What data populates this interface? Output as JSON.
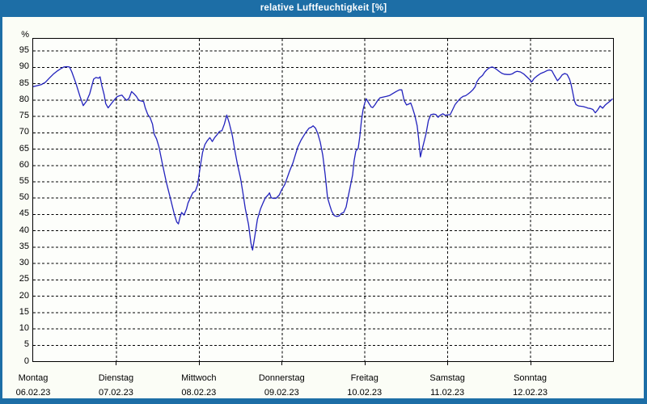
{
  "window": {
    "title": "relative Luftfeuchtigkeit [%]"
  },
  "colors": {
    "chrome": "#1d6ea6",
    "content_bg": "#fbfdf6",
    "plot_bg": "#fdfefb",
    "grid": "#000000",
    "line": "#2222bd",
    "title_text": "#ffffff",
    "label_text": "#000000"
  },
  "chart_data": {
    "type": "line",
    "title": "relative Luftfeuchtigkeit [%]",
    "ylabel": "%",
    "ylim": [
      0,
      100
    ],
    "y_ticks": [
      0,
      5,
      10,
      15,
      20,
      25,
      30,
      35,
      40,
      45,
      50,
      55,
      60,
      65,
      70,
      75,
      80,
      85,
      90,
      95
    ],
    "grid": "dashed",
    "legend": "none",
    "xlim_days": [
      0,
      7
    ],
    "x_categories": [
      {
        "day": "Montag",
        "date": "06.02.23"
      },
      {
        "day": "Dienstag",
        "date": "07.02.23"
      },
      {
        "day": "Mittwoch",
        "date": "08.02.23"
      },
      {
        "day": "Donnerstag",
        "date": "09.02.23"
      },
      {
        "day": "Freitag",
        "date": "10.02.23"
      },
      {
        "day": "Samstag",
        "date": "11.02.23"
      },
      {
        "day": "Sonntag",
        "date": "12.02.23"
      }
    ],
    "series": [
      {
        "name": "relative Luftfeuchtigkeit",
        "unit": "%",
        "color": "#2222bd",
        "points": [
          [
            0,
            84
          ],
          [
            0.049,
            84.3
          ],
          [
            0.097,
            84.6
          ],
          [
            0.146,
            85.3
          ],
          [
            0.195,
            86.6
          ],
          [
            0.243,
            87.8
          ],
          [
            0.292,
            88.8
          ],
          [
            0.341,
            89.6
          ],
          [
            0.37,
            90
          ],
          [
            0.409,
            90.1
          ],
          [
            0.438,
            90
          ],
          [
            0.467,
            88.5
          ],
          [
            0.516,
            85
          ],
          [
            0.565,
            81
          ],
          [
            0.604,
            78.2
          ],
          [
            0.643,
            79.5
          ],
          [
            0.682,
            81.8
          ],
          [
            0.73,
            86.3
          ],
          [
            0.759,
            86.8
          ],
          [
            0.789,
            86.6
          ],
          [
            0.808,
            87
          ],
          [
            0.828,
            84.4
          ],
          [
            0.857,
            81.5
          ],
          [
            0.876,
            78.8
          ],
          [
            0.905,
            77.5
          ],
          [
            0.935,
            78.5
          ],
          [
            0.974,
            79.8
          ],
          [
            1.013,
            80.9
          ],
          [
            1.042,
            81.2
          ],
          [
            1.071,
            81.4
          ],
          [
            1.1,
            80.5
          ],
          [
            1.13,
            79.8
          ],
          [
            1.159,
            80.5
          ],
          [
            1.188,
            82.5
          ],
          [
            1.217,
            81.8
          ],
          [
            1.246,
            81
          ],
          [
            1.276,
            79.8
          ],
          [
            1.305,
            79.6
          ],
          [
            1.334,
            79.4
          ],
          [
            1.353,
            77.5
          ],
          [
            1.383,
            75.5
          ],
          [
            1.412,
            74.5
          ],
          [
            1.441,
            72.5
          ],
          [
            1.461,
            69.5
          ],
          [
            1.49,
            68
          ],
          [
            1.519,
            65.5
          ],
          [
            1.558,
            60.6
          ],
          [
            1.607,
            54.8
          ],
          [
            1.655,
            50
          ],
          [
            1.704,
            45
          ],
          [
            1.733,
            42.6
          ],
          [
            1.753,
            42
          ],
          [
            1.772,
            44
          ],
          [
            1.792,
            45.5
          ],
          [
            1.821,
            44.7
          ],
          [
            1.85,
            46.5
          ],
          [
            1.87,
            48.4
          ],
          [
            1.899,
            50
          ],
          [
            1.928,
            51.6
          ],
          [
            1.957,
            52
          ],
          [
            1.986,
            54
          ],
          [
            2.016,
            59.4
          ],
          [
            2.045,
            63.9
          ],
          [
            2.074,
            66.3
          ],
          [
            2.103,
            67.5
          ],
          [
            2.133,
            68.4
          ],
          [
            2.162,
            67.2
          ],
          [
            2.191,
            68.4
          ],
          [
            2.22,
            69.3
          ],
          [
            2.249,
            70.3
          ],
          [
            2.279,
            70.5
          ],
          [
            2.308,
            72.5
          ],
          [
            2.337,
            75.3
          ],
          [
            2.366,
            73
          ],
          [
            2.405,
            69
          ],
          [
            2.434,
            64.6
          ],
          [
            2.464,
            60.5
          ],
          [
            2.503,
            56
          ],
          [
            2.532,
            51.6
          ],
          [
            2.561,
            46.7
          ],
          [
            2.6,
            41.8
          ],
          [
            2.629,
            36.1
          ],
          [
            2.649,
            34
          ],
          [
            2.678,
            38.6
          ],
          [
            2.707,
            43.4
          ],
          [
            2.746,
            46.7
          ],
          [
            2.775,
            48.4
          ],
          [
            2.804,
            50
          ],
          [
            2.834,
            50.8
          ],
          [
            2.853,
            51.5
          ],
          [
            2.873,
            50
          ],
          [
            2.902,
            49.8
          ],
          [
            2.931,
            49.8
          ],
          [
            2.97,
            50.8
          ],
          [
            2.999,
            52.4
          ],
          [
            3.038,
            54.1
          ],
          [
            3.067,
            56.1
          ],
          [
            3.096,
            58.2
          ],
          [
            3.135,
            60.6
          ],
          [
            3.165,
            63.1
          ],
          [
            3.194,
            65.5
          ],
          [
            3.233,
            67.6
          ],
          [
            3.262,
            68.8
          ],
          [
            3.291,
            70
          ],
          [
            3.33,
            71.3
          ],
          [
            3.359,
            71.6
          ],
          [
            3.379,
            72
          ],
          [
            3.408,
            71.3
          ],
          [
            3.437,
            69.6
          ],
          [
            3.466,
            67
          ],
          [
            3.496,
            63
          ],
          [
            3.525,
            57
          ],
          [
            3.554,
            50
          ],
          [
            3.583,
            47.5
          ],
          [
            3.603,
            45.9
          ],
          [
            3.632,
            44.6
          ],
          [
            3.661,
            44.3
          ],
          [
            3.69,
            44.4
          ],
          [
            3.72,
            45.2
          ],
          [
            3.749,
            45.5
          ],
          [
            3.778,
            47.2
          ],
          [
            3.797,
            49.6
          ],
          [
            3.827,
            53.3
          ],
          [
            3.856,
            57
          ],
          [
            3.875,
            61.4
          ],
          [
            3.895,
            64.3
          ],
          [
            3.924,
            65.1
          ],
          [
            3.943,
            68.8
          ],
          [
            3.963,
            73.6
          ],
          [
            3.982,
            76.9
          ],
          [
            4.002,
            78.9
          ],
          [
            4.021,
            80.3
          ],
          [
            4.05,
            79
          ],
          [
            4.08,
            77.8
          ],
          [
            4.099,
            77.6
          ],
          [
            4.128,
            78.5
          ],
          [
            4.157,
            79.7
          ],
          [
            4.187,
            80.6
          ],
          [
            4.226,
            80.8
          ],
          [
            4.265,
            81
          ],
          [
            4.304,
            81.3
          ],
          [
            4.343,
            81.9
          ],
          [
            4.382,
            82.5
          ],
          [
            4.421,
            83
          ],
          [
            4.45,
            83
          ],
          [
            4.479,
            79.7
          ],
          [
            4.508,
            78.4
          ],
          [
            4.538,
            78.7
          ],
          [
            4.557,
            79
          ],
          [
            4.577,
            77.7
          ],
          [
            4.606,
            75.3
          ],
          [
            4.635,
            72
          ],
          [
            4.654,
            68
          ],
          [
            4.674,
            62.5
          ],
          [
            4.703,
            65.5
          ],
          [
            4.742,
            69.5
          ],
          [
            4.771,
            73.6
          ],
          [
            4.8,
            75.4
          ],
          [
            4.83,
            75.6
          ],
          [
            4.859,
            75.5
          ],
          [
            4.888,
            74.6
          ],
          [
            4.917,
            75.3
          ],
          [
            4.946,
            75.7
          ],
          [
            4.976,
            75.2
          ],
          [
            5.005,
            75.4
          ],
          [
            5.034,
            75.4
          ],
          [
            5.063,
            76.9
          ],
          [
            5.093,
            78.5
          ],
          [
            5.131,
            79.7
          ],
          [
            5.161,
            80.5
          ],
          [
            5.19,
            81
          ],
          [
            5.219,
            81.2
          ],
          [
            5.248,
            81.7
          ],
          [
            5.277,
            82.3
          ],
          [
            5.307,
            83
          ],
          [
            5.336,
            84
          ],
          [
            5.355,
            85.4
          ],
          [
            5.385,
            86.6
          ],
          [
            5.424,
            87.4
          ],
          [
            5.453,
            88.5
          ],
          [
            5.482,
            89.3
          ],
          [
            5.511,
            89.8
          ],
          [
            5.54,
            90
          ],
          [
            5.57,
            89.7
          ],
          [
            5.599,
            89.2
          ],
          [
            5.628,
            88.6
          ],
          [
            5.657,
            88.1
          ],
          [
            5.686,
            87.8
          ],
          [
            5.725,
            87.7
          ],
          [
            5.755,
            87.7
          ],
          [
            5.784,
            87.9
          ],
          [
            5.813,
            88.4
          ],
          [
            5.842,
            88.7
          ],
          [
            5.881,
            88.5
          ],
          [
            5.92,
            87.9
          ],
          [
            5.959,
            87
          ],
          [
            5.988,
            86.3
          ],
          [
            6.018,
            85.4
          ],
          [
            6.047,
            86.5
          ],
          [
            6.086,
            87.3
          ],
          [
            6.125,
            88
          ],
          [
            6.164,
            88.4
          ],
          [
            6.202,
            88.9
          ],
          [
            6.232,
            89.1
          ],
          [
            6.261,
            88.9
          ],
          [
            6.29,
            87.5
          ],
          [
            6.329,
            85.8
          ],
          [
            6.358,
            86.6
          ],
          [
            6.387,
            87.6
          ],
          [
            6.417,
            88
          ],
          [
            6.446,
            87.7
          ],
          [
            6.475,
            86.3
          ],
          [
            6.494,
            84.6
          ],
          [
            6.514,
            82.2
          ],
          [
            6.533,
            79.7
          ],
          [
            6.553,
            78.5
          ],
          [
            6.582,
            78.1
          ],
          [
            6.611,
            78
          ],
          [
            6.64,
            77.9
          ],
          [
            6.669,
            77.7
          ],
          [
            6.699,
            77.4
          ],
          [
            6.728,
            77.3
          ],
          [
            6.757,
            77
          ],
          [
            6.786,
            76
          ],
          [
            6.815,
            76.9
          ],
          [
            6.845,
            78.1
          ],
          [
            6.874,
            77.4
          ],
          [
            6.903,
            78.3
          ],
          [
            6.932,
            78.9
          ],
          [
            6.962,
            79.5
          ],
          [
            6.991,
            80.2
          ]
        ]
      }
    ]
  }
}
